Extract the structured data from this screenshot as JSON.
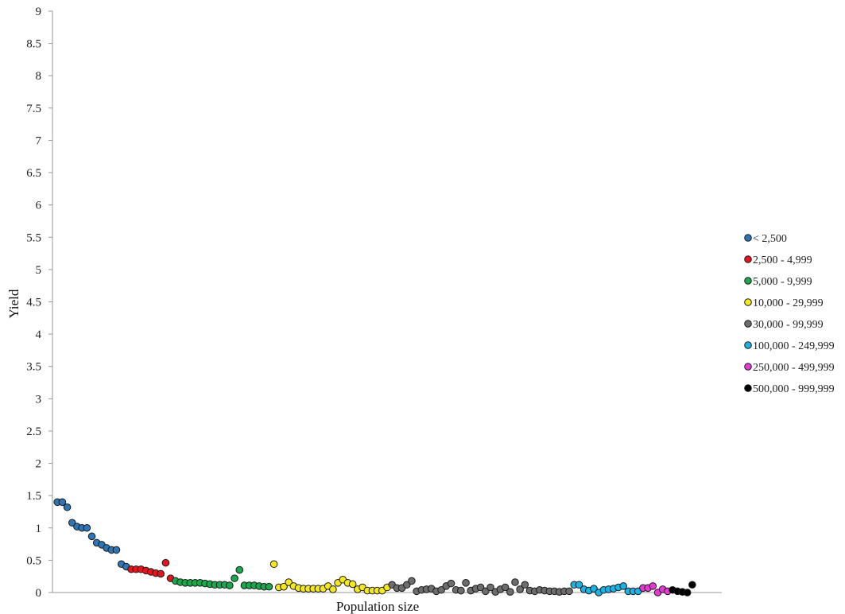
{
  "chart_data": {
    "type": "scatter",
    "title": "",
    "xlabel": "Population  size",
    "ylabel": "Yield",
    "ylim": [
      0,
      9
    ],
    "yticks": [
      "0",
      "0.5",
      "1",
      "1.5",
      "2",
      "2.5",
      "3",
      "3.5",
      "4",
      "4.5",
      "5",
      "5.5",
      "6",
      "6.5",
      "7",
      "7.5",
      "8",
      "8.5",
      "9"
    ],
    "xlim": [
      0,
      136
    ],
    "grid": false,
    "legend_position": "right",
    "series": [
      {
        "name": "< 2,500",
        "color": "#2e75b6",
        "x": [
          1,
          2,
          3,
          4,
          5,
          6,
          7,
          8,
          9,
          10,
          11,
          12,
          13,
          14,
          15
        ],
        "y": [
          1.4,
          1.4,
          1.32,
          1.08,
          1.02,
          1.0,
          1.0,
          0.87,
          0.77,
          0.74,
          0.69,
          0.66,
          0.66,
          0.44,
          0.4
        ]
      },
      {
        "name": "2,500 - 4,999",
        "color": "#e8141c",
        "x": [
          16,
          17,
          18,
          19,
          20,
          21,
          22,
          23,
          24
        ],
        "y": [
          0.36,
          0.36,
          0.36,
          0.34,
          0.32,
          0.3,
          0.29,
          0.46,
          0.22
        ]
      },
      {
        "name": "5,000 - 9,999",
        "color": "#1aa84c",
        "x": [
          25,
          26,
          27,
          28,
          29,
          30,
          31,
          32,
          33,
          34,
          35,
          36,
          37,
          38,
          39,
          40,
          41,
          42,
          43,
          44
        ],
        "y": [
          0.18,
          0.16,
          0.15,
          0.15,
          0.15,
          0.15,
          0.14,
          0.13,
          0.12,
          0.12,
          0.12,
          0.11,
          0.22,
          0.35,
          0.11,
          0.11,
          0.11,
          0.1,
          0.09,
          0.09
        ]
      },
      {
        "name": "10,000 - 29,999",
        "color": "#f5e81c",
        "x": [
          45,
          46,
          47,
          48,
          49,
          50,
          51,
          52,
          53,
          54,
          55,
          56,
          57,
          58,
          59,
          60,
          61,
          62,
          63,
          64,
          65,
          66,
          67,
          68
        ],
        "y": [
          0.44,
          0.08,
          0.09,
          0.16,
          0.1,
          0.07,
          0.06,
          0.06,
          0.06,
          0.06,
          0.06,
          0.1,
          0.05,
          0.15,
          0.2,
          0.15,
          0.13,
          0.05,
          0.08,
          0.03,
          0.03,
          0.03,
          0.03,
          0.08
        ]
      },
      {
        "name": "30,000 - 99,999",
        "color": "#6d6d6d",
        "x": [
          69,
          70,
          71,
          72,
          73,
          74,
          75,
          76,
          77,
          78,
          79,
          80,
          81,
          82,
          83,
          84,
          85,
          86,
          87,
          88,
          89,
          90,
          91,
          92,
          93,
          94,
          95,
          96,
          97,
          98,
          99,
          100,
          101,
          102,
          103,
          104,
          105
        ],
        "y": [
          0.12,
          0.07,
          0.07,
          0.12,
          0.18,
          0.02,
          0.04,
          0.05,
          0.06,
          0.02,
          0.04,
          0.1,
          0.14,
          0.04,
          0.03,
          0.15,
          0.03,
          0.06,
          0.08,
          0.02,
          0.08,
          0.01,
          0.05,
          0.08,
          0.01,
          0.16,
          0.05,
          0.12,
          0.03,
          0.02,
          0.04,
          0.03,
          0.02,
          0.02,
          0.01,
          0.02,
          0.02
        ]
      },
      {
        "name": "100,000 - 249,999",
        "color": "#1ab3e6",
        "x": [
          106,
          107,
          108,
          109,
          110,
          111,
          112,
          113,
          114,
          115,
          116,
          117,
          118,
          119
        ],
        "y": [
          0.12,
          0.12,
          0.05,
          0.03,
          0.06,
          0.0,
          0.04,
          0.05,
          0.06,
          0.08,
          0.1,
          0.02,
          0.02,
          0.02
        ]
      },
      {
        "name": "250,000 - 499,999",
        "color": "#e33bd1",
        "x": [
          120,
          121,
          122,
          123,
          124,
          125
        ],
        "y": [
          0.07,
          0.07,
          0.1,
          0.0,
          0.05,
          0.02
        ]
      },
      {
        "name": "500,000 - 999,999",
        "color": "#000000",
        "x": [
          126,
          127,
          128,
          129,
          130
        ],
        "y": [
          0.04,
          0.02,
          0.01,
          0.0,
          0.12
        ]
      }
    ]
  }
}
